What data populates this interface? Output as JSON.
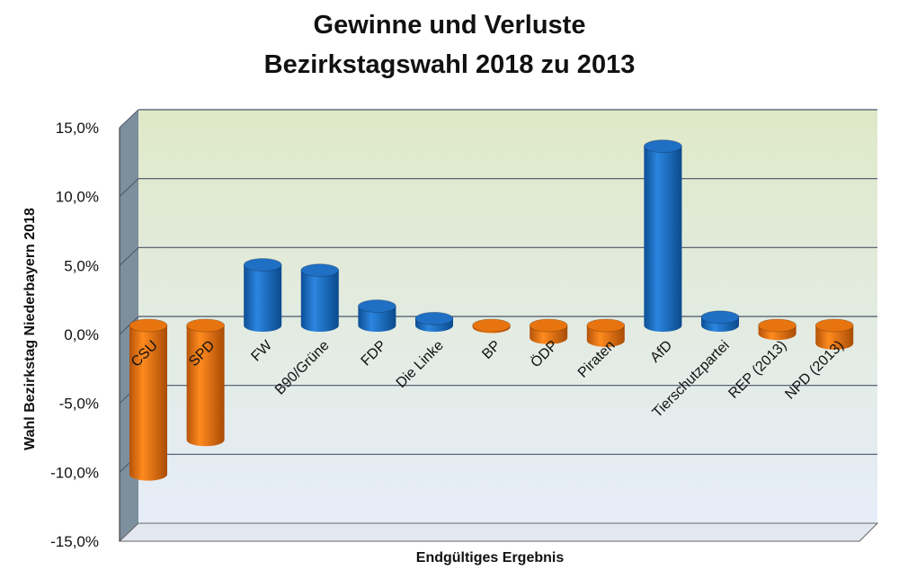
{
  "title_lines": [
    "Gewinne und Verluste",
    "Bezirkstagswahl 2018 zu 2013"
  ],
  "colors": {
    "gain": "#1f6fc4",
    "loss": "#e8740f",
    "grid": "#4a5568",
    "plot_top": "#dfe9c8",
    "plot_bottom": "#e6edf9",
    "side_wall": "#7d8f9d"
  },
  "chart_data": {
    "type": "bar",
    "title": "Gewinne und Verluste Bezirkstagswahl 2018 zu 2013",
    "xlabel": "Endgültiges Ergebnis",
    "ylabel": "Wahl Bezirkstag Niederbayern 2018",
    "ylim": [
      -15,
      15
    ],
    "yticks": [
      15,
      10,
      5,
      0,
      -5,
      -10,
      -15
    ],
    "ytick_labels": [
      "15,0%",
      "10,0%",
      "5,0%",
      "0,0%",
      "-5,0%",
      "-10,0%",
      "-15,0%"
    ],
    "grid": true,
    "legend": "none",
    "categories": [
      "CSU",
      "SPD",
      "FW",
      "B90/Grüne",
      "FDP",
      "Die Linke",
      "BP",
      "ÖDP",
      "Piraten",
      "AfD",
      "Tierschutzpartei",
      "REP (2013)",
      "NPD (2013)"
    ],
    "values": [
      -10.8,
      -8.3,
      4.4,
      4.0,
      1.4,
      0.5,
      -0.1,
      -0.9,
      -1.1,
      13.0,
      0.6,
      -0.6,
      -1.3
    ]
  }
}
